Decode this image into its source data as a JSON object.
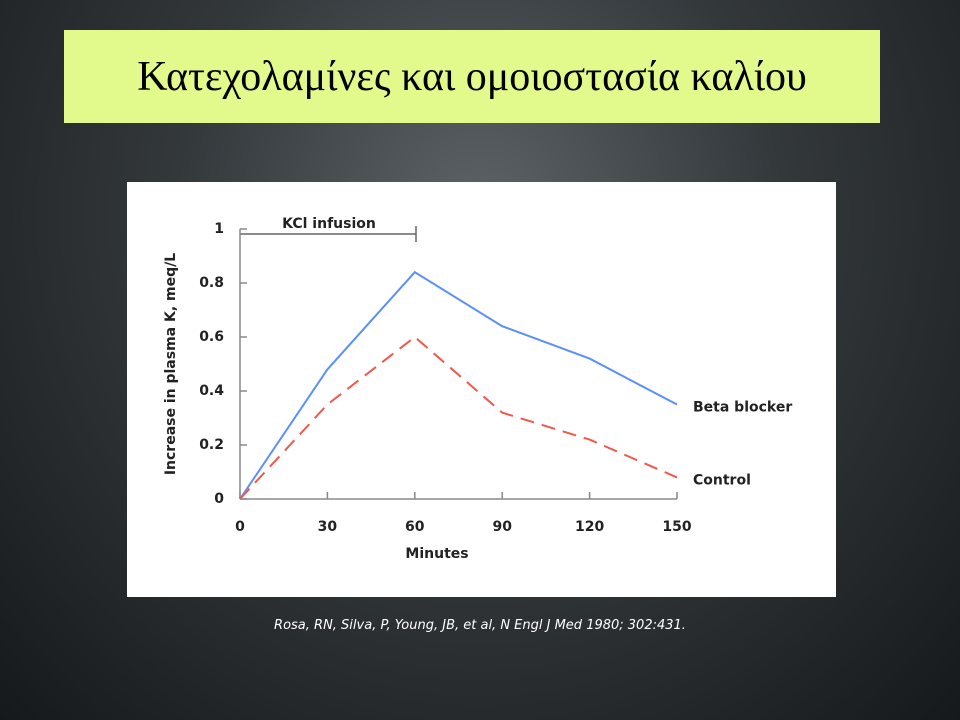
{
  "title": "Κατεχολαμίνες και ομοιοστασία καλίου",
  "chart_data": {
    "type": "line",
    "x_label": "Minutes",
    "y_label": "Increase in plasma K, meq/L",
    "annotation": "KCl infusion",
    "x": [
      0,
      30,
      60,
      90,
      120,
      150
    ],
    "series": [
      {
        "name": "Beta blocker",
        "color": "#5b8ff9",
        "dashed": false,
        "values": [
          0,
          0.48,
          0.84,
          0.64,
          0.52,
          0.35
        ]
      },
      {
        "name": "Control",
        "color": "#f0584a",
        "dashed": true,
        "values": [
          0,
          0.35,
          0.6,
          0.32,
          0.22,
          0.08
        ]
      }
    ],
    "xlim": [
      0,
      150
    ],
    "xticks": [
      0,
      30,
      60,
      90,
      120,
      150
    ],
    "ylim": [
      0,
      1
    ],
    "yticks": [
      0,
      0.2,
      0.4,
      0.6,
      0.8,
      1
    ],
    "grid": false
  },
  "citation": "Rosa, RN, Silva, P, Young, JB, et al, N Engl J Med 1980; 302:431."
}
